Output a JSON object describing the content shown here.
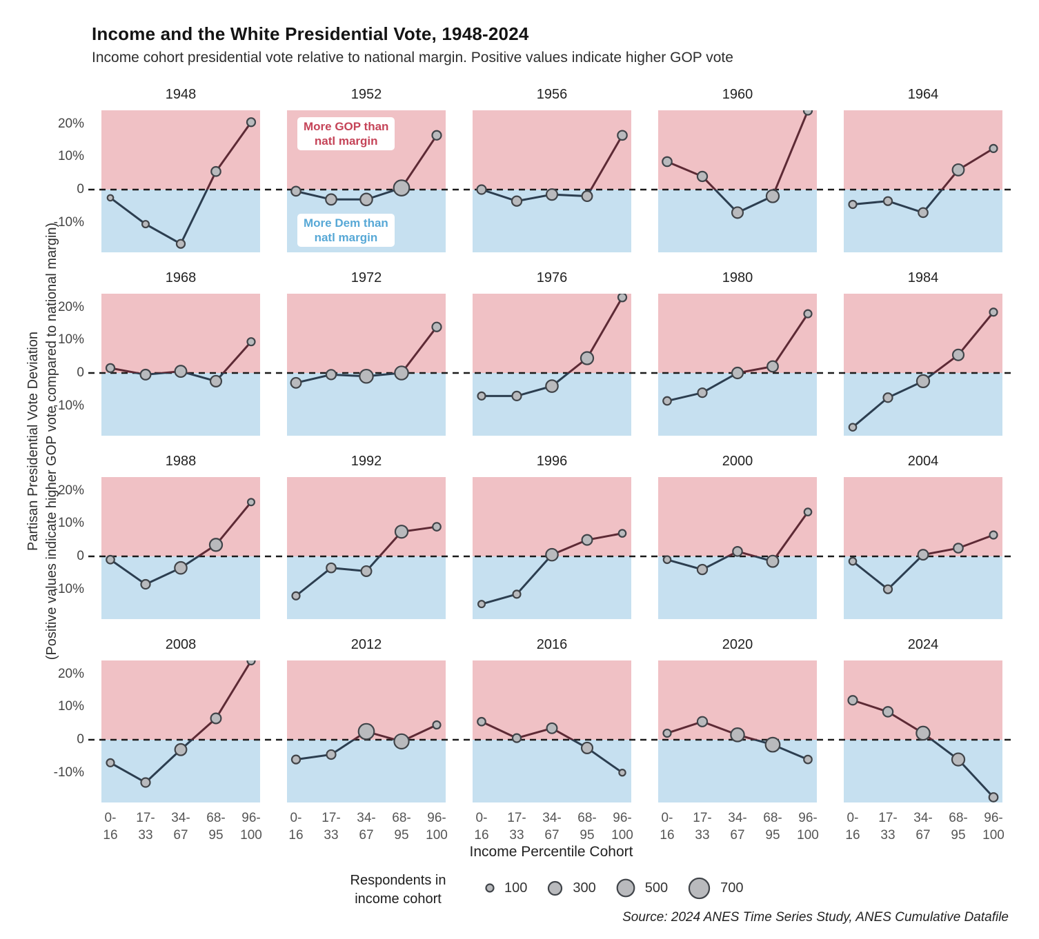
{
  "header": {
    "title": "Income and the White Presidential Vote, 1948-2024",
    "subtitle": "Income cohort presidential vote relative to national margin. Positive values indicate higher GOP vote"
  },
  "y_axis_label": {
    "line1": "Partisan Presidential Vote Deviation",
    "line2": "(Positive values indicate higher GOP vote compared to national margin)"
  },
  "x_axis_title": "Income Percentile Cohort",
  "annotations": {
    "gop": {
      "line1": "More GOP than",
      "line2": "natl margin"
    },
    "dem": {
      "line1": "More Dem than",
      "line2": "natl margin"
    }
  },
  "legend": {
    "label_line1": "Respondents in",
    "label_line2": "income cohort",
    "items": [
      100,
      300,
      500,
      700
    ]
  },
  "source": "Source: 2024 ANES Time Series Study, ANES Cumulative Datafile",
  "colors": {
    "gop_region": "#f0c1c5",
    "dem_region": "#c6e0f0",
    "line_above_zero": "#5d2a35",
    "line_below_zero": "#2c3e50",
    "dot_fill": "#b9babd",
    "dot_stroke": "#404449",
    "zero_dash": "#1a1a1a",
    "annotation_red": "#c54458",
    "annotation_blue": "#57a8d6"
  },
  "chart_data": {
    "type": "line",
    "small_multiples": true,
    "grid": {
      "rows": 4,
      "cols": 5
    },
    "x_categories": [
      "0-16",
      "17-33",
      "34-67",
      "68-95",
      "96-100"
    ],
    "x_tick_labels": [
      [
        "0-",
        "16"
      ],
      [
        "17-",
        "33"
      ],
      [
        "34-",
        "67"
      ],
      [
        "68-",
        "95"
      ],
      [
        "96-",
        "100"
      ]
    ],
    "ylim": [
      -19.1,
      24.1
    ],
    "y_ticks": [
      {
        "label": "20%",
        "value": 20
      },
      {
        "label": "10%",
        "value": 10
      },
      {
        "label": "0",
        "value": 0
      },
      {
        "label": "-10%",
        "value": -10
      }
    ],
    "value_unit": "% deviation from national margin (positive = more GOP)",
    "size_encoding": "respondents in income cohort",
    "panels": [
      {
        "year": "1948",
        "values": [
          -2.5,
          -10.5,
          -16.5,
          5.5,
          20.5
        ],
        "n": [
          60,
          80,
          120,
          150,
          120
        ]
      },
      {
        "year": "1952",
        "values": [
          -0.5,
          -3,
          -3,
          0.5,
          16.5
        ],
        "n": [
          150,
          200,
          250,
          420,
          140
        ]
      },
      {
        "year": "1956",
        "values": [
          0,
          -3.5,
          -1.5,
          -2,
          16.5
        ],
        "n": [
          140,
          165,
          210,
          180,
          150
        ]
      },
      {
        "year": "1960",
        "values": [
          8.5,
          4,
          -7,
          -2,
          24
        ],
        "n": [
          150,
          165,
          210,
          270,
          120
        ]
      },
      {
        "year": "1964",
        "values": [
          -4.5,
          -3.5,
          -7,
          6,
          12.5
        ],
        "n": [
          100,
          120,
          150,
          230,
          100
        ]
      },
      {
        "year": "1968",
        "values": [
          1.5,
          -0.5,
          0.5,
          -2.5,
          9.5
        ],
        "n": [
          120,
          180,
          230,
          210,
          100
        ]
      },
      {
        "year": "1972",
        "values": [
          -3,
          -0.5,
          -1,
          0,
          14
        ],
        "n": [
          180,
          165,
          310,
          310,
          140
        ]
      },
      {
        "year": "1976",
        "values": [
          -7,
          -7,
          -4,
          4.5,
          23
        ],
        "n": [
          100,
          140,
          250,
          270,
          120
        ]
      },
      {
        "year": "1980",
        "values": [
          -8.5,
          -6,
          0,
          2,
          18
        ],
        "n": [
          110,
          140,
          210,
          200,
          100
        ]
      },
      {
        "year": "1984",
        "values": [
          -16.5,
          -7.5,
          -2.5,
          5.5,
          18.5
        ],
        "n": [
          90,
          140,
          270,
          210,
          100
        ]
      },
      {
        "year": "1988",
        "values": [
          -1,
          -8.5,
          -3.5,
          3.5,
          16.5
        ],
        "n": [
          110,
          140,
          250,
          270,
          80
        ]
      },
      {
        "year": "1992",
        "values": [
          -12,
          -3.5,
          -4.5,
          7.5,
          9
        ],
        "n": [
          100,
          150,
          180,
          270,
          110
        ]
      },
      {
        "year": "1996",
        "values": [
          -14.5,
          -11.5,
          0.5,
          5,
          7
        ],
        "n": [
          80,
          100,
          250,
          180,
          90
        ]
      },
      {
        "year": "2000",
        "values": [
          -1,
          -4,
          1.5,
          -1.5,
          13.5
        ],
        "n": [
          90,
          165,
          150,
          230,
          90
        ]
      },
      {
        "year": "2004",
        "values": [
          -1.5,
          -10,
          0.5,
          2.5,
          6.5
        ],
        "n": [
          90,
          120,
          180,
          150,
          100
        ]
      },
      {
        "year": "2008",
        "values": [
          -7,
          -13,
          -3,
          6.5,
          24
        ],
        "n": [
          100,
          140,
          230,
          180,
          100
        ]
      },
      {
        "year": "2012",
        "values": [
          -6,
          -4.5,
          2.5,
          -0.5,
          4.5
        ],
        "n": [
          120,
          140,
          420,
          370,
          100
        ]
      },
      {
        "year": "2016",
        "values": [
          5.5,
          0.5,
          3.5,
          -2.5,
          -10
        ],
        "n": [
          110,
          120,
          180,
          210,
          70
        ]
      },
      {
        "year": "2020",
        "values": [
          2,
          5.5,
          1.5,
          -1.5,
          -6
        ],
        "n": [
          100,
          165,
          310,
          350,
          110
        ]
      },
      {
        "year": "2024",
        "values": [
          12,
          8.5,
          2,
          -6,
          -17.5
        ],
        "n": [
          140,
          170,
          310,
          270,
          130
        ]
      }
    ]
  }
}
